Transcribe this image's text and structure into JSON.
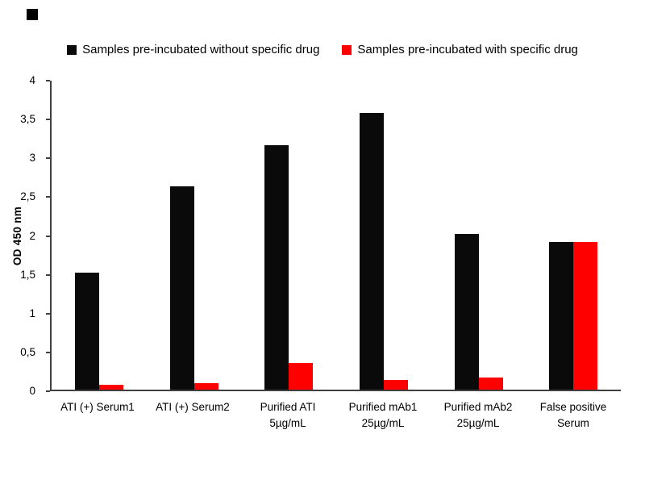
{
  "chart_data": {
    "type": "bar",
    "title": "",
    "xlabel": "",
    "ylabel": "OD 450 nm",
    "ylim": [
      0,
      4
    ],
    "grid": false,
    "legend_position": "top",
    "yticks": [
      {
        "label": "0",
        "value": 0
      },
      {
        "label": "0,5",
        "value": 0.5
      },
      {
        "label": "1",
        "value": 1
      },
      {
        "label": "1,5",
        "value": 1.5
      },
      {
        "label": "2",
        "value": 2
      },
      {
        "label": "2,5",
        "value": 2.5
      },
      {
        "label": "3",
        "value": 3
      },
      {
        "label": "3,5",
        "value": 3.5
      },
      {
        "label": "4",
        "value": 4
      }
    ],
    "categories": [
      "ATI (+) Serum1",
      "ATI (+) Serum2",
      "Purified ATI\n5µg/mL",
      "Purified mAb1\n25µg/mL",
      "Purified mAb2\n25µg/mL",
      "False positive\nSerum"
    ],
    "series": [
      {
        "name": "Samples pre-incubated without specific drug",
        "color": "#0a0a0a",
        "values": [
          1.51,
          2.63,
          3.16,
          3.58,
          2.02,
          1.91
        ]
      },
      {
        "name": "Samples pre-incubated with specific drug",
        "color": "#ff0000",
        "values": [
          0.06,
          0.08,
          0.35,
          0.13,
          0.16,
          1.91
        ]
      }
    ]
  }
}
